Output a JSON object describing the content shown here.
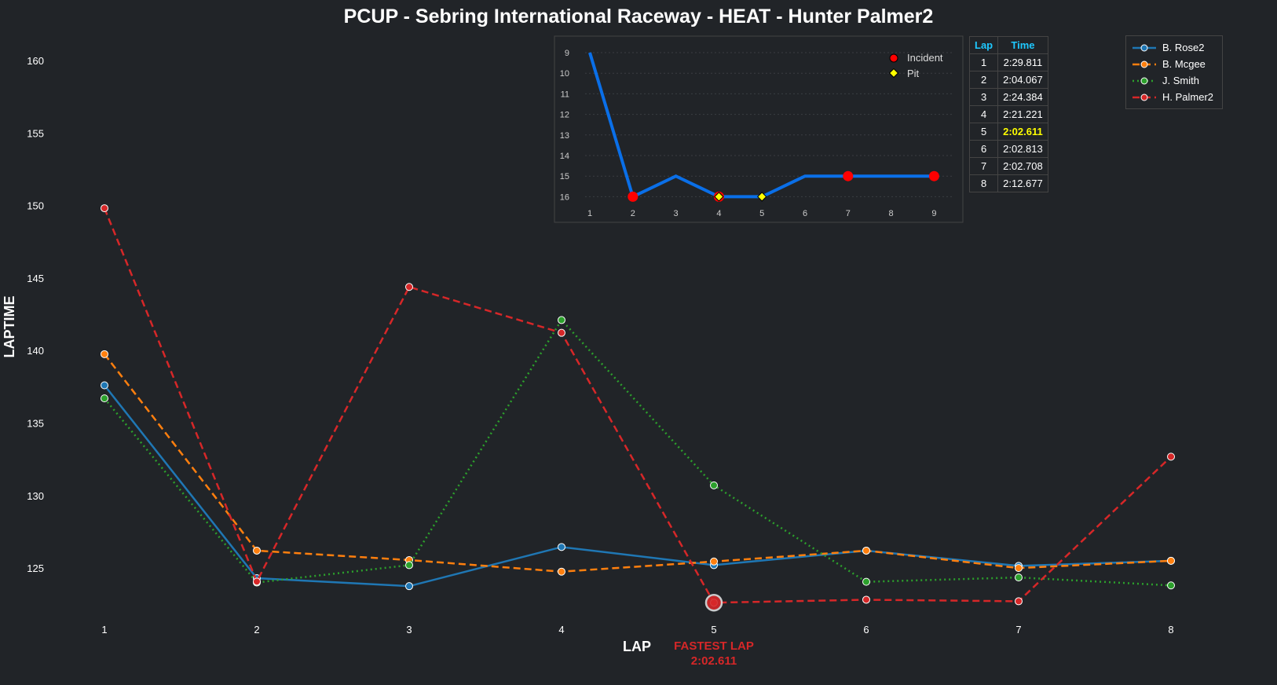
{
  "chart_data": {
    "type": "line",
    "title": "PCUP - Sebring International Raceway - HEAT - Hunter Palmer2",
    "xlabel": "LAP",
    "ylabel": "LAPTIME",
    "x": [
      1,
      2,
      3,
      4,
      5,
      6,
      7,
      8
    ],
    "yticks": [
      125,
      130,
      135,
      140,
      145,
      150,
      155,
      160
    ],
    "ylim": [
      121.3,
      161.9
    ],
    "grid": false,
    "legend_placement": "top-right",
    "series": [
      {
        "name": "B. Rose2",
        "color": "#1f77b4",
        "dash": "solid",
        "values": [
          137.6,
          124.3,
          123.75,
          126.45,
          125.2,
          126.2,
          125.15,
          125.5
        ]
      },
      {
        "name": "B. Mcgee",
        "color": "#ff7f0e",
        "dash": "dashed",
        "values": [
          139.75,
          126.2,
          125.55,
          124.75,
          125.45,
          126.2,
          125.0,
          125.5
        ]
      },
      {
        "name": "J. Smith",
        "color": "#2ca02c",
        "dash": "dotted",
        "values": [
          136.7,
          124.0,
          125.2,
          142.1,
          130.7,
          124.05,
          124.35,
          123.8
        ]
      },
      {
        "name": "H. Palmer2",
        "color": "#d62728",
        "dash": "dashed",
        "values": [
          149.811,
          124.067,
          144.384,
          141.221,
          122.611,
          122.813,
          122.708,
          132.677
        ]
      }
    ],
    "annotation": {
      "lap": 5,
      "value": 122.611,
      "label1": "FASTEST LAP",
      "label2": "2:02.611",
      "color": "#d62728"
    },
    "inset": {
      "type": "line",
      "x": [
        1,
        2,
        3,
        4,
        5,
        6,
        7,
        8,
        9
      ],
      "positions": [
        9,
        16,
        15,
        16,
        16,
        15,
        15,
        15,
        15
      ],
      "yticks": [
        9,
        10,
        11,
        12,
        13,
        14,
        15,
        16
      ],
      "yinverted": true,
      "color": "#0a6fe8",
      "incident_laps": [
        2,
        4,
        7,
        9
      ],
      "pit_laps": [
        4,
        5
      ],
      "legend": {
        "incident": "Incident",
        "pit": "Pit",
        "incident_color": "#ff0000",
        "pit_color": "#ffff00"
      }
    },
    "table": {
      "headers": [
        "Lap",
        "Time"
      ],
      "rows": [
        [
          "1",
          "2:29.811"
        ],
        [
          "2",
          "2:04.067"
        ],
        [
          "3",
          "2:24.384"
        ],
        [
          "4",
          "2:21.221"
        ],
        [
          "5",
          "2:02.611"
        ],
        [
          "6",
          "2:02.813"
        ],
        [
          "7",
          "2:02.708"
        ],
        [
          "8",
          "2:12.677"
        ]
      ],
      "highlight_row": 4
    }
  }
}
